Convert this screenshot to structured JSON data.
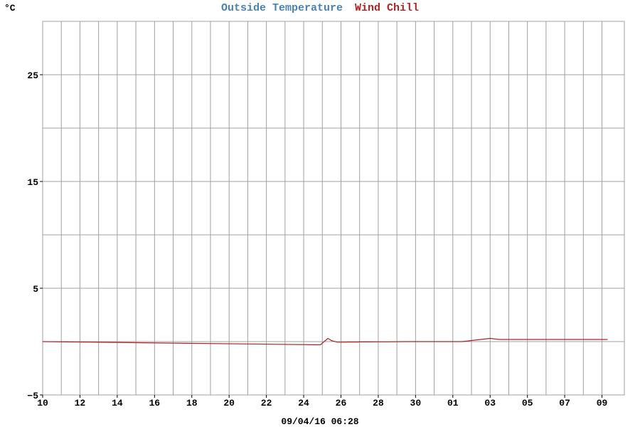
{
  "chart_data": {
    "type": "line",
    "title_parts": [
      {
        "text": "Outside Temperature",
        "color": "#4682b4"
      },
      {
        "text": "Wind Chill",
        "color": "#b22222"
      }
    ],
    "unit_label": "°C",
    "footer_timestamp": "09/04/16 06:28",
    "x_tick_labels": [
      "10",
      "12",
      "14",
      "16",
      "18",
      "20",
      "22",
      "24",
      "26",
      "28",
      "30",
      "01",
      "03",
      "05",
      "07",
      "09"
    ],
    "y_ticks": [
      -5,
      5,
      15,
      25
    ],
    "y_tick_labels": [
      "−5",
      "5",
      "15",
      "25"
    ],
    "ylim": [
      -5,
      30
    ],
    "xlim": [
      0,
      31.2
    ],
    "grid": true,
    "series": [
      {
        "name": "Wind Chill",
        "color": "#b22222",
        "x": [
          0,
          14.9,
          15.3,
          15.4,
          15.48,
          15.6,
          15.8,
          15.9,
          15.95,
          16.05,
          16.2,
          16.3,
          16.35,
          16.4,
          16.45,
          16.55,
          16.6,
          16.65,
          16.7,
          16.8,
          16.9,
          17.0,
          17.5,
          18.0,
          18.5,
          19.0,
          19.5,
          20.0,
          20.5,
          21.0,
          21.5,
          22.0,
          22.5,
          23.0,
          23.5,
          24.0,
          24.5,
          25.0,
          25.5,
          26.0,
          26.5,
          27.0,
          27.5,
          28.0,
          28.5,
          29.0,
          29.5,
          30.0,
          30.18,
          30.22,
          30.3
        ],
        "y": [
          0,
          -0.3,
          0.3,
          0.2,
          0.1,
          0.05,
          -0.05,
          -0.05,
          -0.05,
          -0.05,
          -0.05,
          -0.05,
          -0.04,
          -0.04,
          -0.04,
          -0.04,
          -0.04,
          -0.04,
          -0.04,
          -0.04,
          -0.04,
          -0.03,
          -0.03,
          -0.02,
          -0.02,
          -0.01,
          0,
          0,
          0,
          0,
          0,
          0,
          0,
          0.1,
          0.2,
          0.3,
          0.2,
          0.2,
          0.2,
          0.2,
          0.2,
          0.2,
          0.2,
          0.2,
          0.2,
          0.2,
          0.2,
          0.2,
          0.2,
          0.2,
          0.2
        ]
      },
      {
        "name": "Outside Temperature",
        "color": "#4682b4",
        "x": [],
        "y": []
      }
    ]
  }
}
